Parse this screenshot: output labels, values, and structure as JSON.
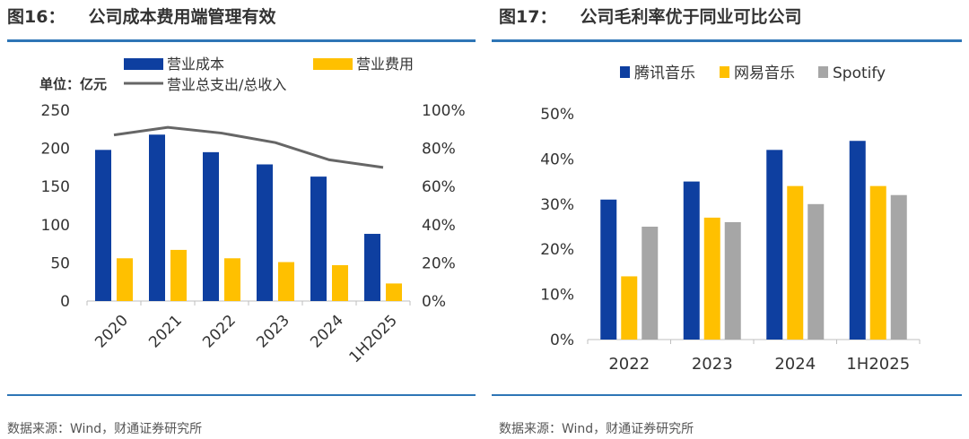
{
  "left": {
    "figure_no": "图16：",
    "title": "公司成本费用端管理有效",
    "source": "数据来源：Wind，财通证券研究所"
  },
  "right": {
    "figure_no": "图17：",
    "title": "公司毛利率优于同业可比公司",
    "source": "数据来源：Wind，财通证券研究所"
  },
  "chart_data": [
    {
      "type": "bar",
      "title": "公司成本费用端管理有效",
      "unit_label": "单位：亿元",
      "categories": [
        "2020",
        "2021",
        "2022",
        "2023",
        "2024",
        "1H2025"
      ],
      "series": [
        {
          "name": "营业成本",
          "kind": "bar",
          "axis": "left",
          "color": "#0e3fa0",
          "values": [
            198,
            218,
            195,
            179,
            163,
            88
          ]
        },
        {
          "name": "营业费用",
          "kind": "bar",
          "axis": "left",
          "color": "#ffc000",
          "values": [
            56,
            67,
            56,
            51,
            47,
            23
          ]
        },
        {
          "name": "营业总支出/总收入",
          "kind": "line",
          "axis": "right",
          "color": "#666666",
          "values": [
            0.87,
            0.91,
            0.88,
            0.83,
            0.74,
            0.7
          ]
        }
      ],
      "y_left": {
        "min": 0,
        "max": 250,
        "ticks": [
          "0",
          "50",
          "100",
          "150",
          "200",
          "250"
        ]
      },
      "y_right": {
        "min": 0,
        "max": 1,
        "ticks": [
          "0%",
          "20%",
          "40%",
          "60%",
          "80%",
          "100%"
        ]
      },
      "legend": "top",
      "grid": false
    },
    {
      "type": "bar",
      "title": "公司毛利率优于同业可比公司",
      "categories": [
        "2022",
        "2023",
        "2024",
        "1H2025"
      ],
      "series": [
        {
          "name": "腾讯音乐",
          "color": "#0e3fa0",
          "values": [
            0.31,
            0.35,
            0.42,
            0.44
          ]
        },
        {
          "name": "网易音乐",
          "color": "#ffc000",
          "values": [
            0.14,
            0.27,
            0.34,
            0.34
          ]
        },
        {
          "name": "Spotify",
          "color": "#a6a6a6",
          "values": [
            0.25,
            0.26,
            0.3,
            0.32
          ]
        }
      ],
      "y_axis": {
        "min": 0,
        "max": 0.5,
        "ticks": [
          "0%",
          "10%",
          "20%",
          "30%",
          "40%",
          "50%"
        ]
      },
      "legend": "top",
      "grid": false
    }
  ]
}
